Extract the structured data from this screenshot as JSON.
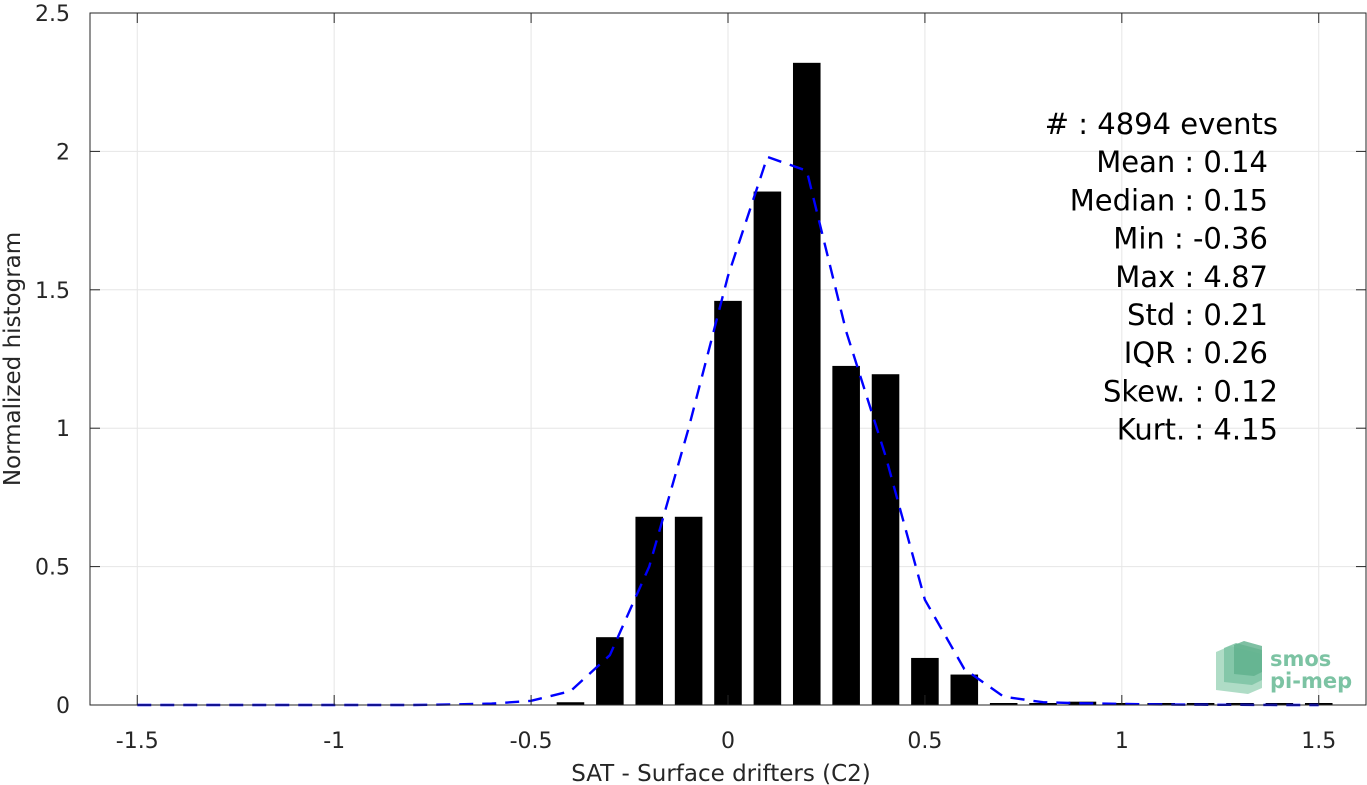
{
  "chart_data": {
    "type": "bar",
    "xlabel": "SAT - Surface drifters (C2)",
    "ylabel": "Normalized histogram",
    "xlim": [
      -1.62,
      1.62
    ],
    "ylim": [
      0,
      2.5
    ],
    "xticks": [
      -1.5,
      -1,
      -0.5,
      0,
      0.5,
      1,
      1.5
    ],
    "xtick_labels": [
      "-1.5",
      "-1",
      "-0.5",
      "0",
      "0.5",
      "1",
      "1.5"
    ],
    "yticks": [
      0,
      0.5,
      1,
      1.5,
      2,
      2.5
    ],
    "ytick_labels": [
      "0",
      "0.5",
      "1",
      "1.5",
      "2",
      "2.5"
    ],
    "grid": true,
    "bar_width": 0.07,
    "bars": {
      "x": [
        -1.4,
        -1.3,
        -1.2,
        -1.1,
        -1.0,
        -0.9,
        -0.8,
        -0.7,
        -0.6,
        -0.5,
        -0.4,
        -0.3,
        -0.2,
        -0.1,
        0.0,
        0.1,
        0.2,
        0.3,
        0.4,
        0.5,
        0.6,
        0.7,
        0.8,
        0.9,
        1.0,
        1.1,
        1.2,
        1.3,
        1.4,
        1.5
      ],
      "values": [
        0,
        0,
        0,
        0,
        0,
        0,
        0,
        0,
        0,
        0,
        0.01,
        0.245,
        0.68,
        0.68,
        1.46,
        1.855,
        2.32,
        1.225,
        1.195,
        0.17,
        0.11,
        0.004,
        0.006,
        0.012,
        0.002,
        0.002,
        0.002,
        0.002,
        0.004,
        0.004
      ]
    },
    "fit": {
      "style": "dashed",
      "color": "#0000ff",
      "x": [
        -1.5,
        -1.4,
        -1.3,
        -1.2,
        -1.1,
        -1.0,
        -0.9,
        -0.8,
        -0.7,
        -0.6,
        -0.5,
        -0.4,
        -0.3,
        -0.2,
        -0.1,
        0.0,
        0.1,
        0.2,
        0.3,
        0.4,
        0.5,
        0.6,
        0.7,
        0.8,
        0.9,
        1.0,
        1.1,
        1.2,
        1.3,
        1.4,
        1.5
      ],
      "y": [
        0,
        0,
        0,
        0,
        0,
        0,
        0,
        0,
        0.002,
        0.005,
        0.015,
        0.05,
        0.18,
        0.5,
        1.0,
        1.55,
        1.98,
        1.93,
        1.35,
        0.9,
        0.38,
        0.13,
        0.03,
        0.01,
        0.006,
        0.004,
        0.002,
        0.001,
        0.0005,
        0,
        0
      ]
    },
    "colors": {
      "bars": "#000000",
      "grid": "#e6e6e6",
      "axis": "#262626"
    },
    "annotation_lines": [
      "#  : 4894 events",
      "Mean : 0.14",
      "Median : 0.15",
      "Min : -0.36",
      "Max : 4.87",
      "Std : 0.21",
      "IQR : 0.26",
      "Skew. : 0.12",
      "Kurt. : 4.15"
    ]
  },
  "logo": {
    "line1": "smos",
    "line2": "pi-mep",
    "color": "#7cc3a3"
  }
}
